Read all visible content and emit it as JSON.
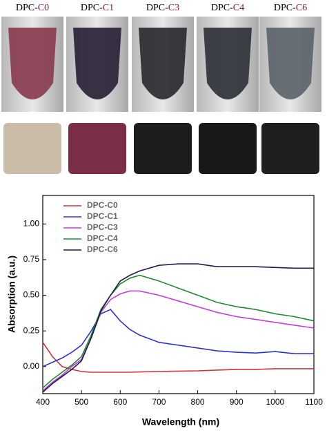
{
  "photo_labels": [
    {
      "prefix": "DPC-",
      "code": "C0"
    },
    {
      "prefix": "DPC-",
      "code": "C1"
    },
    {
      "prefix": "DPC-",
      "code": "C3"
    },
    {
      "prefix": "DPC-",
      "code": "C4"
    },
    {
      "prefix": "DPC-",
      "code": "C6"
    }
  ],
  "chart_data": {
    "type": "line",
    "x_label": "Wavelength (nm)",
    "y_label": "Absorption (a.u.)",
    "x": [
      400,
      425,
      450,
      475,
      500,
      525,
      550,
      575,
      600,
      625,
      650,
      700,
      750,
      800,
      850,
      900,
      950,
      1000,
      1050,
      1100
    ],
    "series": [
      {
        "name": "DPC-C0",
        "color": "#d0303c",
        "values": [
          0.17,
          0.07,
          0.0,
          -0.02,
          -0.035,
          -0.04,
          -0.04,
          -0.04,
          -0.04,
          -0.04,
          -0.038,
          -0.035,
          -0.032,
          -0.03,
          -0.025,
          -0.02,
          -0.02,
          -0.015,
          -0.015,
          -0.015
        ]
      },
      {
        "name": "DPC-C1",
        "color": "#2e34c8",
        "values": [
          0.0,
          0.03,
          0.06,
          0.1,
          0.15,
          0.25,
          0.37,
          0.4,
          0.32,
          0.26,
          0.22,
          0.17,
          0.15,
          0.13,
          0.11,
          0.1,
          0.095,
          0.105,
          0.09,
          0.09
        ]
      },
      {
        "name": "DPC-C3",
        "color": "#c040d8",
        "values": [
          -0.17,
          -0.11,
          -0.06,
          0.0,
          0.05,
          0.2,
          0.38,
          0.47,
          0.51,
          0.53,
          0.53,
          0.5,
          0.46,
          0.42,
          0.38,
          0.35,
          0.33,
          0.31,
          0.29,
          0.27
        ]
      },
      {
        "name": "DPC-C4",
        "color": "#1f8a2a",
        "values": [
          -0.15,
          -0.09,
          -0.04,
          0.01,
          0.07,
          0.22,
          0.4,
          0.5,
          0.58,
          0.62,
          0.64,
          0.6,
          0.55,
          0.5,
          0.45,
          0.42,
          0.4,
          0.37,
          0.35,
          0.32
        ]
      },
      {
        "name": "DPC-C6",
        "color": "#1a1f4a",
        "values": [
          -0.18,
          -0.12,
          -0.07,
          -0.02,
          0.04,
          0.2,
          0.39,
          0.5,
          0.6,
          0.64,
          0.67,
          0.71,
          0.72,
          0.72,
          0.7,
          0.7,
          0.7,
          0.695,
          0.69,
          0.69
        ]
      }
    ],
    "xlim": [
      400,
      1100
    ],
    "xticks": [
      400,
      500,
      600,
      700,
      800,
      900,
      1000,
      1100
    ],
    "ylim": [
      -0.19,
      1.2
    ],
    "yticks": [
      {
        "value": 0,
        "label": "0.00"
      },
      {
        "value": 0.25,
        "label": "0.25"
      },
      {
        "value": 0.5,
        "label": "0.50"
      },
      {
        "value": 0.75,
        "label": "0.75"
      },
      {
        "value": 1,
        "label": "1.00"
      }
    ],
    "grid": false,
    "legend": "upper left"
  }
}
